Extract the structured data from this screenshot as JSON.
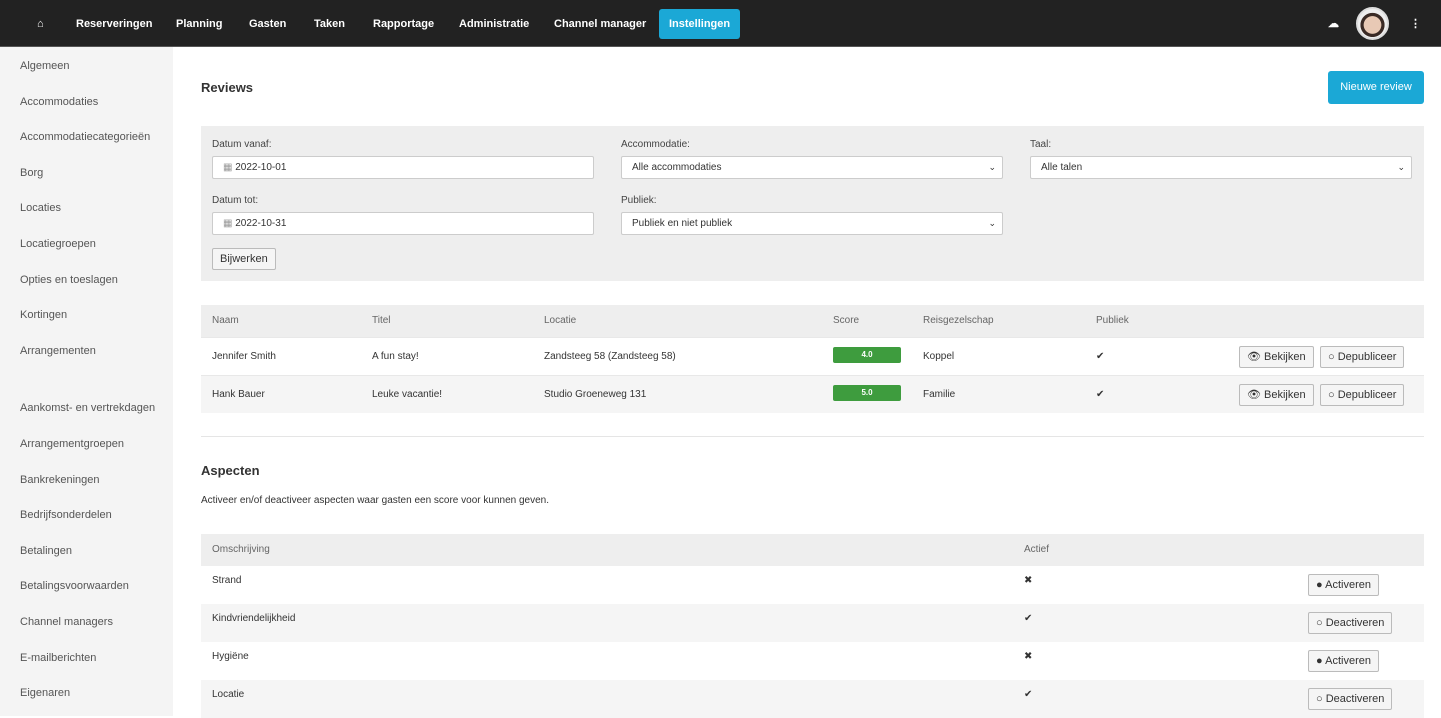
{
  "nav": {
    "items": [
      "Reserveringen",
      "Planning",
      "Gasten",
      "Taken",
      "Rapportage",
      "Administratie",
      "Channel manager",
      "Instellingen"
    ],
    "active": "Instellingen"
  },
  "sidebar": {
    "items": [
      "Algemeen",
      "Accommodaties",
      "Accommodatiecategorieën",
      "Borg",
      "Locaties",
      "Locatiegroepen",
      "Opties en toeslagen",
      "Kortingen",
      "Arrangementen",
      "Aankomst- en vertrekdagen",
      "Arrangementgroepen",
      "Bankrekeningen",
      "Bedrijfsonderdelen",
      "Betalingen",
      "Betalingsvoorwaarden",
      "Channel managers",
      "E-mailberichten",
      "Eigenaren"
    ]
  },
  "reviews": {
    "title": "Reviews",
    "new_button": "Nieuwe review",
    "filter": {
      "date_from_label": "Datum vanaf:",
      "date_from": "2022-10-01",
      "date_to_label": "Datum tot:",
      "date_to": "2022-10-31",
      "accommodation_label": "Accommodatie:",
      "accommodation": "Alle accommodaties",
      "public_label": "Publiek:",
      "public": "Publiek en niet publiek",
      "language_label": "Taal:",
      "language": "Alle talen",
      "update_button": "Bijwerken"
    },
    "columns": [
      "Naam",
      "Titel",
      "Locatie",
      "Score",
      "Reisgezelschap",
      "Publiek"
    ],
    "rows": [
      {
        "name": "Jennifer Smith",
        "title": "A fun stay!",
        "location": "Zandsteeg 58 (Zandsteeg 58)",
        "score": "4.0",
        "party": "Koppel",
        "public": true
      },
      {
        "name": "Hank Bauer",
        "title": "Leuke vacantie!",
        "location": "Studio Groeneweg 131",
        "score": "5.0",
        "party": "Familie",
        "public": true
      }
    ],
    "view_button": "Bekijken",
    "unpublish_button": "Depubliceer"
  },
  "aspects": {
    "title": "Aspecten",
    "description": "Activeer en/of deactiveer aspecten waar gasten een score voor kunnen geven.",
    "columns": [
      "Omschrijving",
      "Actief"
    ],
    "rows": [
      {
        "name": "Strand",
        "active": false,
        "button": "Activeren"
      },
      {
        "name": "Kindvriendelijkheid",
        "active": true,
        "button": "Deactiveren"
      },
      {
        "name": "Hygiëne",
        "active": false,
        "button": "Activeren"
      },
      {
        "name": "Locatie",
        "active": true,
        "button": "Deactiveren"
      }
    ]
  },
  "colors": {
    "accent": "#1ba8d6",
    "score": "#3e9c3e",
    "navbar": "#222222"
  }
}
